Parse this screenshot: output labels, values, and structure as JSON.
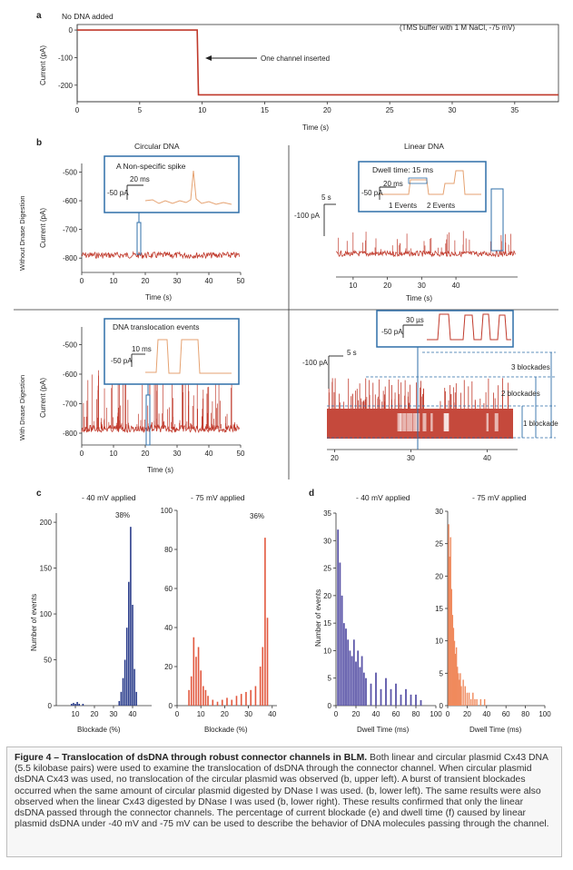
{
  "figure": {
    "panels": {
      "a": {
        "letter": "a",
        "note": "No DNA added",
        "condition": "(TMS buffer with 1 M NaCl, -75 mV)",
        "annotation": "One channel inserted"
      },
      "b": {
        "letter": "b",
        "col_circular": "Circular DNA",
        "col_linear": "Linear DNA",
        "row_without": "Without Dnase Digestion",
        "row_with": "With Dnase Digestion",
        "inset1_title": "A Non-specific spike",
        "inset1_time": "20 ms",
        "inset1_amp": "-50 pA",
        "inset2_title": "Dwell time: 15 ms",
        "inset2_time": "20 ms",
        "inset2_amp": "-50 pA",
        "inset2_ev1": "1 Events",
        "inset2_ev2": "2 Events",
        "scale2_time": "5 s",
        "scale2_amp": "-100 pA",
        "inset3_title": "DNA translocation events",
        "inset3_time": "10 ms",
        "inset3_amp": "-50 pA",
        "inset4_time": "30 µs",
        "inset4_amp": "-50 pA",
        "scale4_time": "5 s",
        "scale4_amp": "-100 pA",
        "blk3": "3 blockades",
        "blk2": "2 blockades",
        "blk1": "1 blockade"
      },
      "c": {
        "letter": "c",
        "left_title": "- 40 mV applied",
        "right_title": "- 75 mV applied",
        "left_pct": "38%",
        "right_pct": "36%"
      },
      "d": {
        "letter": "d",
        "left_title": "- 40 mV applied",
        "right_title": "- 75 mV applied"
      }
    },
    "caption": {
      "title": "Figure 4 – Translocation of dsDNA through robust connector channels in BLM.",
      "text": " Both linear and circular plasmid Cx43 DNA (5.5 kilobase pairs) were used to examine the translocation of dsDNA through the connector channel. When circular plasmid dsDNA Cx43 was used, no translocation of the circular plasmid was observed (b, upper left). A burst of transient blockades occurred when the same amount of circular plasmid digested by DNase I was used. (b, lower left). The same results were also observed when the linear Cx43 digested by DNase I was used (b, lower right). These results confirmed that only the linear dsDNA passed through the connector channels. The percentage of current blockade (e) and dwell time (f) caused by linear plasmid dsDNA under -40 mV and -75 mV can be used to describe the behavior of DNA molecules passing through the channel."
    }
  },
  "chart_data": [
    {
      "id": "a",
      "type": "line",
      "ylabel": "Current (pA)",
      "xlabel": "Time (s)",
      "xlim": [
        0,
        38.5
      ],
      "ylim": [
        -260,
        20
      ],
      "xticks": [
        0,
        5,
        10,
        15,
        20,
        25,
        30,
        35
      ],
      "yticks": [
        0,
        -100,
        -200
      ],
      "series": [
        {
          "x": [
            0,
            9.6,
            9.7,
            38.5
          ],
          "y": [
            0,
            0,
            -235,
            -235
          ]
        }
      ]
    },
    {
      "id": "b-upper-left",
      "type": "line",
      "ylabel": "Current (pA)",
      "xlabel": "Time (s)",
      "xlim": [
        0,
        50
      ],
      "ylim": [
        -850,
        -470
      ],
      "xticks": [
        0,
        10,
        20,
        30,
        40,
        50
      ],
      "yticks": [
        -500,
        -600,
        -700,
        -800
      ],
      "baseline": -790,
      "events": []
    },
    {
      "id": "b-upper-right",
      "type": "line",
      "xlabel": "Time (s)",
      "xlim": [
        5,
        58
      ],
      "ylim": [
        -820,
        -600
      ],
      "xticks": [
        10,
        20,
        30,
        40
      ],
      "baseline": -775,
      "events": [
        {
          "count": 1
        },
        {
          "count": 2
        }
      ]
    },
    {
      "id": "b-lower-left",
      "type": "line",
      "ylabel": "Current (pA)",
      "xlabel": "Time (s)",
      "xlim": [
        0,
        50
      ],
      "ylim": [
        -840,
        -440
      ],
      "xticks": [
        0,
        10,
        20,
        30,
        40,
        50
      ],
      "yticks": [
        -500,
        -600,
        -700,
        -800
      ],
      "baseline": -785
    },
    {
      "id": "b-lower-right",
      "type": "line",
      "xlabel": "Time (s)",
      "xlim": [
        19,
        44
      ],
      "ylim": [
        -700,
        -420
      ],
      "xticks": [
        20,
        30,
        40
      ],
      "blockade_levels": [
        1,
        2,
        3
      ]
    },
    {
      "id": "c-40mV",
      "type": "bar",
      "xlabel": "Blockade (%)",
      "ylabel": "Number of events",
      "xlim": [
        0,
        50
      ],
      "ylim": [
        0,
        210
      ],
      "xticks": [
        10,
        20,
        30,
        40
      ],
      "yticks": [
        0,
        50,
        100,
        150,
        200
      ],
      "x": [
        8,
        9,
        10,
        11,
        12,
        14,
        33,
        34,
        35,
        36,
        37,
        38,
        39,
        40,
        41,
        42
      ],
      "y": [
        2,
        3,
        2,
        4,
        2,
        2,
        5,
        15,
        30,
        50,
        85,
        135,
        195,
        110,
        40,
        15
      ]
    },
    {
      "id": "c-75mV",
      "type": "bar",
      "xlabel": "Blockade (%)",
      "ylim": [
        0,
        100
      ],
      "xlim": [
        0,
        42
      ],
      "xticks": [
        0,
        10,
        20,
        30,
        40
      ],
      "yticks": [
        0,
        20,
        40,
        60,
        80,
        100
      ],
      "x": [
        5,
        6,
        7,
        8,
        9,
        10,
        11,
        12,
        13,
        15,
        17,
        19,
        21,
        23,
        25,
        27,
        29,
        31,
        33,
        35,
        36,
        37,
        38
      ],
      "y": [
        8,
        15,
        35,
        25,
        30,
        18,
        10,
        8,
        5,
        3,
        2,
        3,
        4,
        3,
        5,
        6,
        7,
        8,
        10,
        20,
        30,
        86,
        45
      ]
    },
    {
      "id": "d-40mV",
      "type": "bar",
      "xlabel": "Dwell Time (ms)",
      "ylabel": "Number of events",
      "xlim": [
        0,
        100
      ],
      "ylim": [
        0,
        35
      ],
      "xticks": [
        0,
        20,
        40,
        60,
        80,
        100
      ],
      "yticks": [
        0,
        5,
        10,
        15,
        20,
        25,
        30,
        35
      ],
      "x": [
        2,
        4,
        6,
        8,
        10,
        12,
        14,
        16,
        18,
        20,
        22,
        24,
        26,
        28,
        30,
        35,
        40,
        45,
        50,
        55,
        60,
        65,
        70,
        75,
        80,
        85
      ],
      "y": [
        32,
        26,
        20,
        15,
        14,
        12,
        10,
        9,
        12,
        8,
        10,
        7,
        9,
        6,
        5,
        4,
        6,
        3,
        5,
        3,
        4,
        2,
        3,
        2,
        2,
        1
      ]
    },
    {
      "id": "d-75mV",
      "type": "bar",
      "xlabel": "Dwell Time (ms)",
      "xlim": [
        0,
        100
      ],
      "ylim": [
        0,
        30
      ],
      "xticks": [
        0,
        20,
        40,
        60,
        80,
        100
      ],
      "yticks": [
        0,
        5,
        10,
        15,
        20,
        25,
        30
      ],
      "x": [
        1,
        2,
        3,
        4,
        5,
        6,
        7,
        8,
        9,
        10,
        11,
        12,
        13,
        14,
        16,
        18,
        20,
        22,
        24,
        26,
        28,
        30,
        34,
        38
      ],
      "y": [
        28,
        23,
        26,
        18,
        14,
        12,
        10,
        8,
        9,
        6,
        5,
        4,
        5,
        3,
        4,
        3,
        2,
        2,
        1,
        2,
        1,
        1,
        1,
        1
      ]
    }
  ]
}
